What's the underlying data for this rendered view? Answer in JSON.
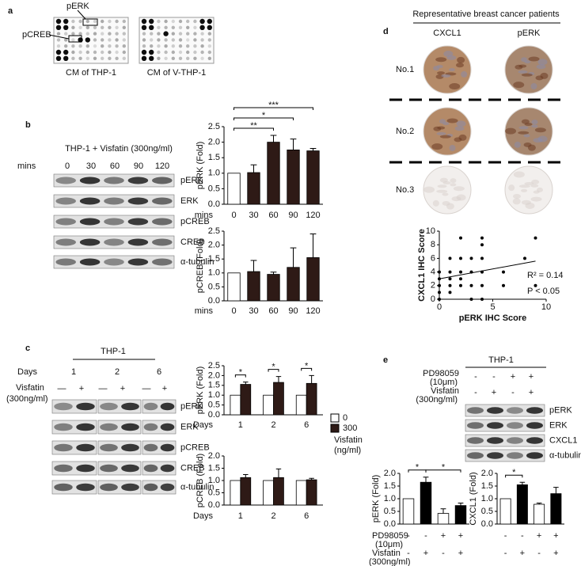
{
  "figure": {
    "a": {
      "label": "a",
      "spot_labels": [
        "pERK",
        "pCREB"
      ],
      "captions": [
        "CM of THP-1",
        "CM of V-THP-1"
      ]
    },
    "b": {
      "label": "b",
      "treatment": "THP-1 + Visfatin (300ng/ml)",
      "time_label": "mins",
      "times": [
        "0",
        "30",
        "60",
        "90",
        "120"
      ],
      "blots": [
        "pERK",
        "ERK",
        "pCREB",
        "CREB",
        "α-tubulin"
      ]
    },
    "c": {
      "label": "c",
      "cell": "THP-1",
      "days_label": "Days",
      "days": [
        "1",
        "2",
        "6"
      ],
      "treatment": "Visfatin",
      "dose": "(300ng/ml)",
      "signs": [
        "—",
        "+",
        "—",
        "+",
        "—",
        "+"
      ],
      "blots": [
        "pERK",
        "ERK",
        "pCREB",
        "CREB",
        "α-tubulin"
      ]
    },
    "d": {
      "label": "d",
      "heading": "Representative breast cancer patients",
      "stains": [
        "CXCL1",
        "pERK"
      ],
      "patients": [
        "No.1",
        "No.2",
        "No.3"
      ]
    },
    "e": {
      "label": "e",
      "cell": "THP-1",
      "inhibitor": "PD98059",
      "inhibitor_dose": "(10μm)",
      "treatment": "Visfatin",
      "treatment_dose": "(300ng/ml)",
      "inhibitor_signs": [
        "-",
        "-",
        "+",
        "+"
      ],
      "treatment_signs": [
        "-",
        "+",
        "-",
        "+"
      ],
      "blots": [
        "pERK",
        "ERK",
        "CXCL1",
        "α-tubulin"
      ]
    }
  },
  "chart_data": [
    {
      "type": "bar",
      "ylabel": "pERK (Fold)",
      "xlabel": "mins",
      "categories": [
        "0",
        "30",
        "60",
        "90",
        "120"
      ],
      "values": [
        1,
        1.02,
        2.0,
        1.75,
        1.72
      ],
      "errors": [
        null,
        0.25,
        0.22,
        0.35,
        0.08
      ],
      "colors": [
        "#ffffff",
        "#2e1a16",
        "#2e1a16",
        "#2e1a16",
        "#2e1a16"
      ],
      "ylim": [
        0,
        2.5
      ],
      "yticks": [
        {
          "value": 0,
          "label": "0.0"
        },
        {
          "value": 0.5,
          "label": "0.5"
        },
        {
          "value": 1,
          "label": "1.0"
        },
        {
          "value": 1.5,
          "label": "1.5"
        },
        {
          "value": 2,
          "label": "2.0"
        },
        {
          "value": 2.5,
          "label": "2.5"
        }
      ],
      "significance": [
        {
          "between": [
            0,
            2
          ],
          "label": "**"
        },
        {
          "between": [
            0,
            3
          ],
          "label": "*"
        },
        {
          "between": [
            0,
            4
          ],
          "label": "***"
        }
      ]
    },
    {
      "type": "bar",
      "ylabel": "pCREB (Fold)",
      "xlabel": "mins",
      "categories": [
        "0",
        "30",
        "60",
        "90",
        "120"
      ],
      "values": [
        1,
        1.05,
        0.95,
        1.2,
        1.55
      ],
      "errors": [
        null,
        0.4,
        0.08,
        0.7,
        0.85
      ],
      "colors": [
        "#ffffff",
        "#2e1a16",
        "#2e1a16",
        "#2e1a16",
        "#2e1a16"
      ],
      "ylim": [
        0,
        2.5
      ],
      "yticks": [
        {
          "value": 0,
          "label": "0.0"
        },
        {
          "value": 0.5,
          "label": "0.5"
        },
        {
          "value": 1,
          "label": "1.0"
        },
        {
          "value": 1.5,
          "label": "1.5"
        },
        {
          "value": 2,
          "label": "2.0"
        },
        {
          "value": 2.5,
          "label": "2.5"
        }
      ]
    },
    {
      "type": "bar",
      "ylabel": "pERK (Fold)",
      "xlabel": "Days",
      "categories": [
        "1",
        "2",
        "6"
      ],
      "series": [
        {
          "name": "0",
          "color": "#ffffff",
          "values": [
            1,
            1,
            1
          ]
        },
        {
          "name": "300",
          "color": "#2e1a16",
          "values": [
            1.55,
            1.65,
            1.6
          ],
          "errors": [
            0.12,
            0.3,
            0.4
          ]
        }
      ],
      "legend": "right",
      "legend_title": [
        "Visfatin",
        "(ng/ml)"
      ],
      "ylim": [
        0,
        2.5
      ],
      "yticks": [
        {
          "value": 0,
          "label": "0.0"
        },
        {
          "value": 0.5,
          "label": "0.5"
        },
        {
          "value": 1,
          "label": "1.0"
        },
        {
          "value": 1.5,
          "label": "1.5"
        },
        {
          "value": 2,
          "label": "2.0"
        },
        {
          "value": 2.5,
          "label": "2.5"
        }
      ],
      "significance": [
        {
          "category": 0,
          "label": "*"
        },
        {
          "category": 1,
          "label": "*"
        },
        {
          "category": 2,
          "label": "*"
        }
      ]
    },
    {
      "type": "bar",
      "ylabel": "pCREB (Fold)",
      "xlabel": "Days",
      "categories": [
        "1",
        "2",
        "6"
      ],
      "series": [
        {
          "color": "#ffffff",
          "values": [
            1,
            1,
            1
          ]
        },
        {
          "color": "#2e1a16",
          "values": [
            1.12,
            1.12,
            1.03
          ],
          "errors": [
            0.12,
            0.35,
            0.06
          ]
        }
      ],
      "ylim": [
        0,
        2.0
      ],
      "yticks": [
        {
          "value": 0,
          "label": "0.0"
        },
        {
          "value": 0.5,
          "label": "0.5"
        },
        {
          "value": 1,
          "label": "1.0"
        },
        {
          "value": 1.5,
          "label": "1.5"
        },
        {
          "value": 2,
          "label": "2.0"
        }
      ]
    },
    {
      "type": "scatter",
      "xlabel": "pERK IHC Score",
      "ylabel": "CXCL1 IHC Score",
      "x": [
        0,
        0,
        0,
        0,
        0,
        1,
        1,
        1,
        1,
        1,
        2,
        2,
        2,
        2,
        2,
        3,
        3,
        3,
        3,
        4,
        4,
        4,
        4,
        4,
        4,
        6,
        6,
        8,
        9,
        9
      ],
      "y": [
        0,
        1,
        2,
        3,
        4,
        1,
        2,
        3,
        4,
        6,
        2,
        3,
        4,
        6,
        9,
        0,
        2,
        4,
        6,
        0,
        2,
        4,
        6,
        8,
        9,
        2,
        4,
        6,
        2,
        9
      ],
      "fit": {
        "x": [
          0,
          9
        ],
        "y": [
          3.0,
          5.6
        ]
      },
      "color": "#000000",
      "xlim": [
        0,
        10
      ],
      "ylim": [
        0,
        10
      ],
      "xticks": [
        0,
        5,
        10
      ],
      "yticks": [
        0,
        2,
        4,
        6,
        8,
        10
      ],
      "annotations": [
        "R² = 0.14",
        "P < 0.05"
      ]
    },
    {
      "type": "bar",
      "ylabel": "pERK (Fold)",
      "categories": [
        null,
        null,
        null,
        null
      ],
      "values": [
        1,
        1.65,
        0.42,
        0.73
      ],
      "errors": [
        null,
        0.2,
        0.18,
        0.1
      ],
      "colors": [
        "#ffffff",
        "#000000",
        "#ffffff",
        "#000000"
      ],
      "ylim": [
        0,
        2.0
      ],
      "yticks": [
        {
          "value": 0,
          "label": "0.0"
        },
        {
          "value": 0.5,
          "label": "0.5"
        },
        {
          "value": 1,
          "label": "1.0"
        },
        {
          "value": 1.5,
          "label": "1.5"
        },
        {
          "value": 2,
          "label": "2.0"
        }
      ],
      "significance": [
        {
          "between": [
            0,
            1
          ],
          "label": "*"
        },
        {
          "between": [
            1,
            3
          ],
          "label": "*"
        }
      ]
    },
    {
      "type": "bar",
      "ylabel": "CXCL1 (Fold)",
      "categories": [
        null,
        null,
        null,
        null
      ],
      "values": [
        1,
        1.55,
        0.78,
        1.2
      ],
      "errors": [
        null,
        0.1,
        0.05,
        0.25
      ],
      "colors": [
        "#ffffff",
        "#000000",
        "#ffffff",
        "#000000"
      ],
      "ylim": [
        0,
        2.0
      ],
      "yticks": [
        {
          "value": 0,
          "label": "0.0"
        },
        {
          "value": 0.5,
          "label": "0.5"
        },
        {
          "value": 1,
          "label": "1.0"
        },
        {
          "value": 1.5,
          "label": "1.5"
        },
        {
          "value": 2,
          "label": "2.0"
        }
      ],
      "significance": [
        {
          "between": [
            0,
            1
          ],
          "label": "*"
        }
      ]
    }
  ]
}
